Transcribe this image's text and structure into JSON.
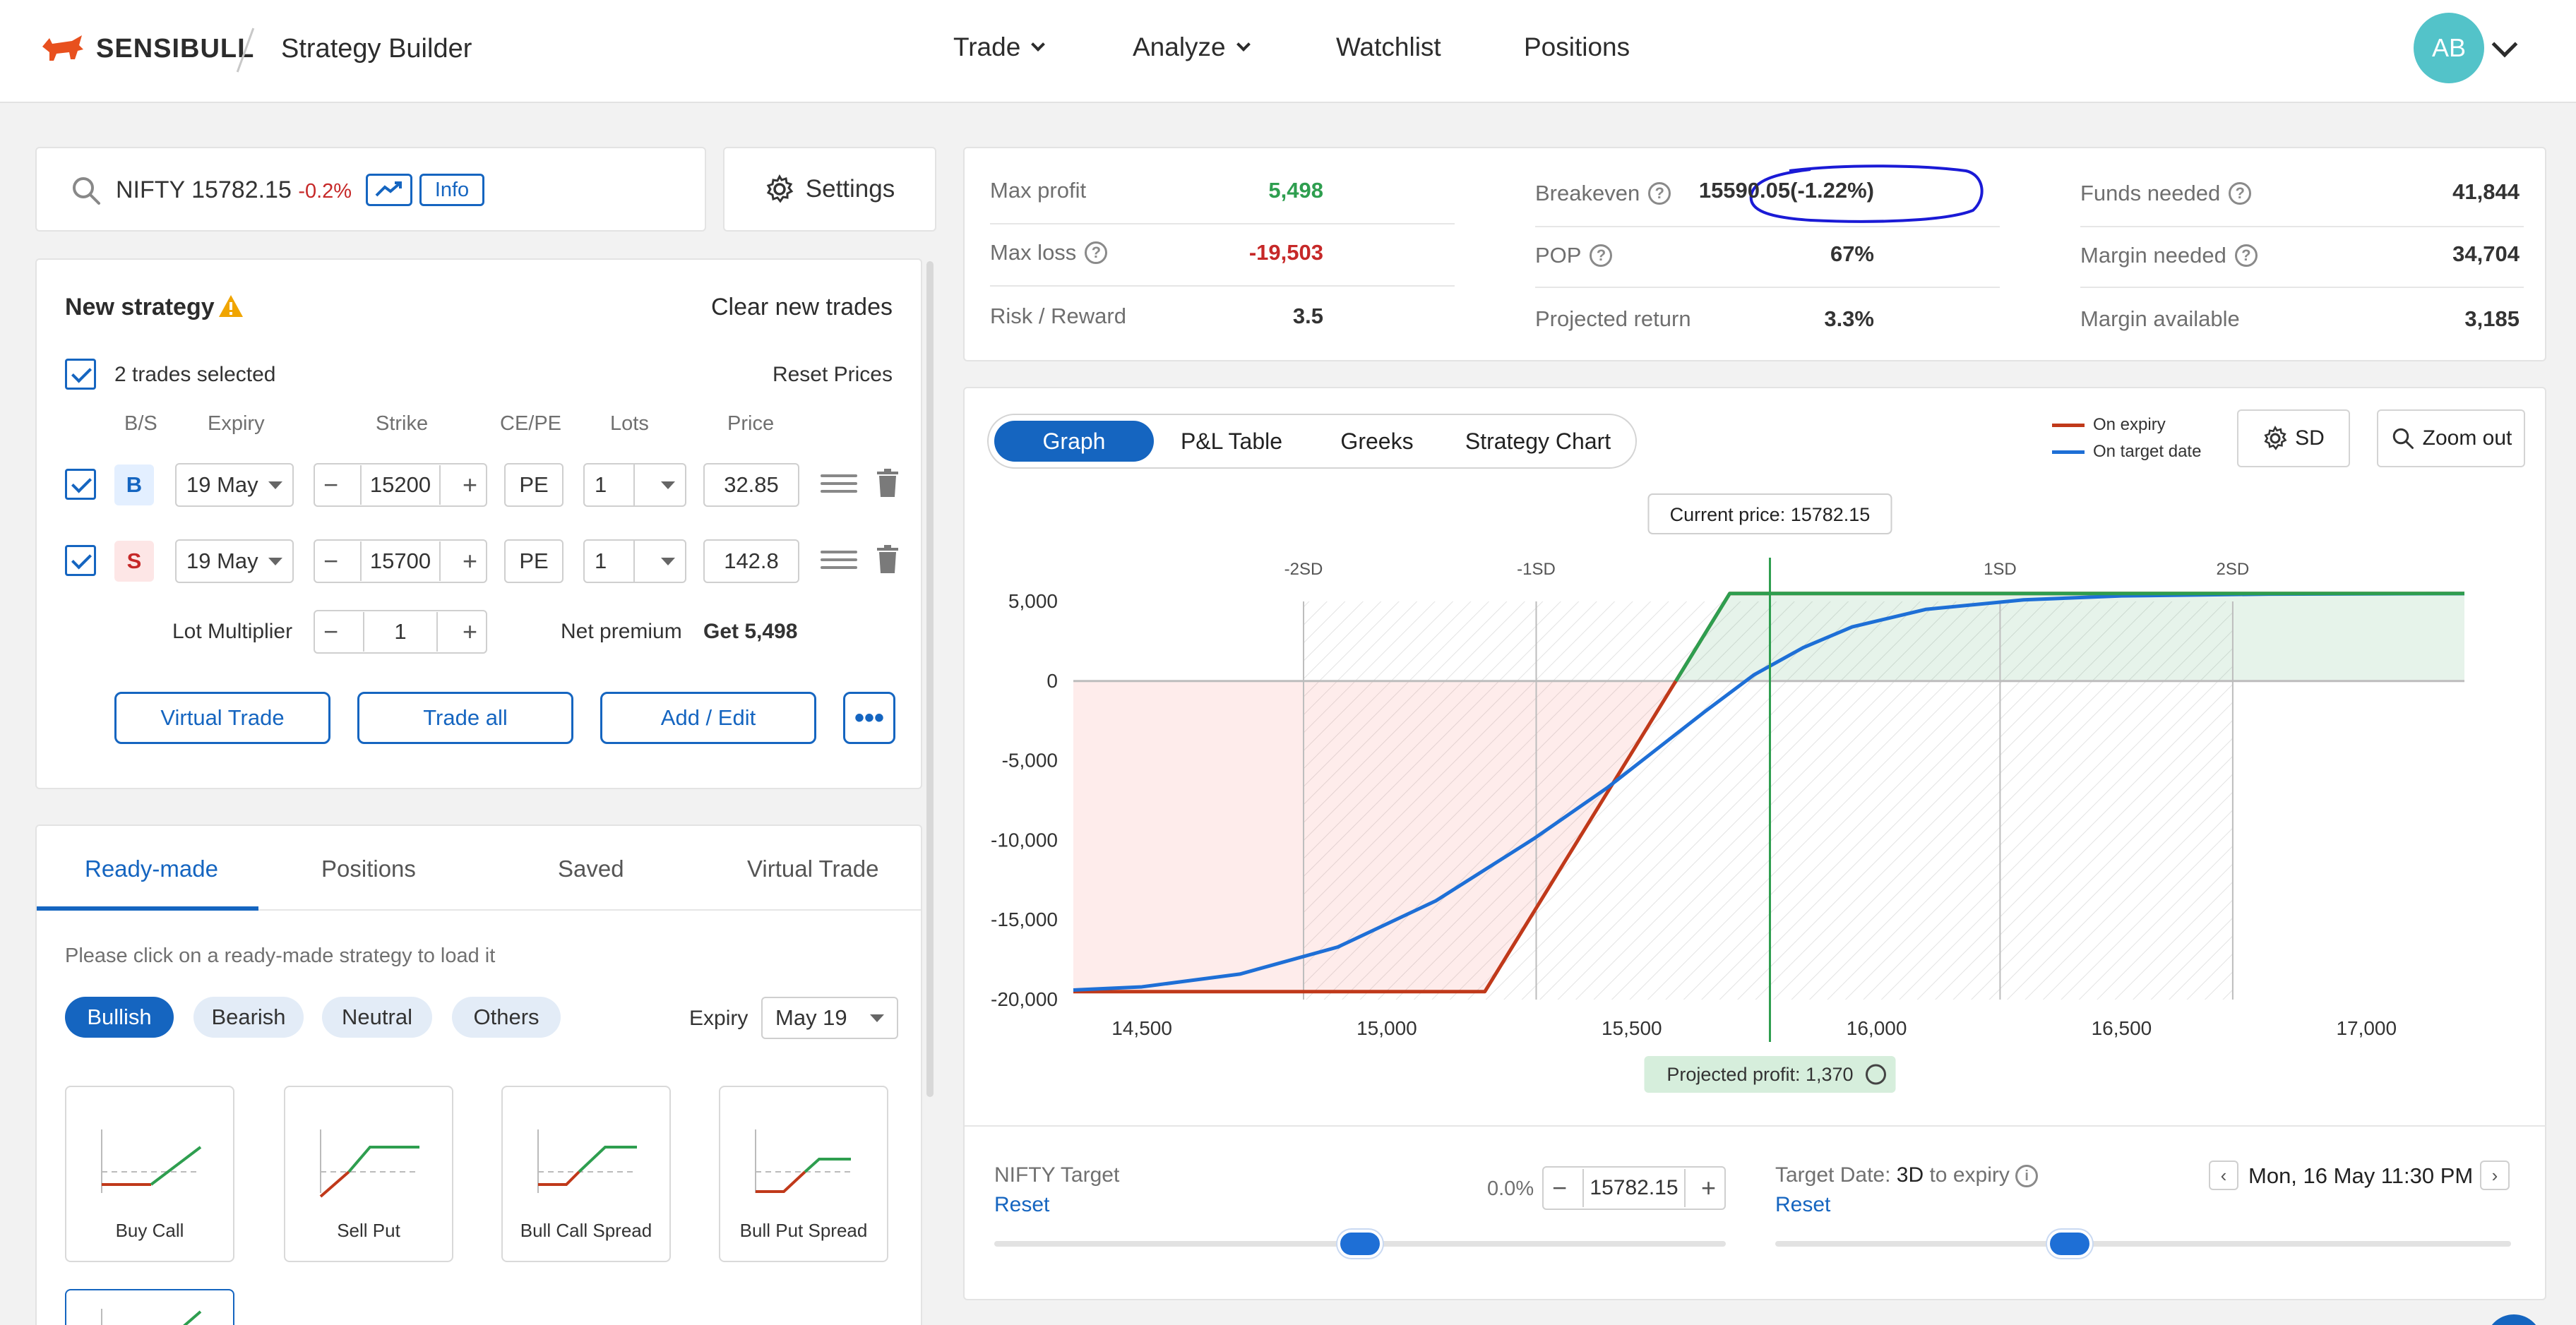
{
  "header": {
    "brand": "SENSIBULL",
    "page_title": "Strategy Builder",
    "nav": [
      {
        "label": "Trade",
        "has_menu": true
      },
      {
        "label": "Analyze",
        "has_menu": true
      },
      {
        "label": "Watchlist",
        "has_menu": false
      },
      {
        "label": "Positions",
        "has_menu": false
      }
    ],
    "avatar_initials": "AB"
  },
  "search": {
    "symbol": "NIFTY",
    "price": "15782.15",
    "change": "-0.2%",
    "info_label": "Info",
    "settings_label": "Settings"
  },
  "strategy": {
    "title": "New strategy",
    "clear_label": "Clear new trades",
    "selected_text": "2 trades selected",
    "reset_prices_label": "Reset Prices",
    "columns": [
      "B/S",
      "Expiry",
      "Strike",
      "CE/PE",
      "Lots",
      "Price"
    ],
    "legs": [
      {
        "side": "B",
        "expiry": "19 May",
        "strike": "15200",
        "type": "PE",
        "lots": "1",
        "price": "32.85"
      },
      {
        "side": "S",
        "expiry": "19 May",
        "strike": "15700",
        "type": "PE",
        "lots": "1",
        "price": "142.8"
      }
    ],
    "lot_multiplier_label": "Lot Multiplier",
    "lot_multiplier": "1",
    "net_premium_label": "Net premium",
    "net_premium_value": "Get 5,498",
    "buttons": {
      "virtual_trade": "Virtual Trade",
      "trade_all": "Trade all",
      "add_edit": "Add / Edit"
    }
  },
  "lower_tabs": [
    "Ready-made",
    "Positions",
    "Saved",
    "Virtual Trade"
  ],
  "readymade": {
    "hint": "Please click on a ready-made strategy to load it",
    "filters": [
      "Bullish",
      "Bearish",
      "Neutral",
      "Others"
    ],
    "expiry_label": "Expiry",
    "expiry_value": "May 19",
    "cards": [
      "Buy Call",
      "Sell Put",
      "Bull Call Spread",
      "Bull Put Spread"
    ]
  },
  "metrics": {
    "col1": [
      {
        "label": "Max profit",
        "value": "5,498",
        "color": "#2e9e4f",
        "help": false
      },
      {
        "label": "Max loss",
        "value": "-19,503",
        "color": "#c62828",
        "help": true
      },
      {
        "label": "Risk / Reward",
        "value": "3.5",
        "color": "#333333",
        "help": false
      }
    ],
    "col2": [
      {
        "label": "Breakeven",
        "value": "15590.05(-1.22%)",
        "color": "#333333",
        "help": true
      },
      {
        "label": "POP",
        "value": "67%",
        "color": "#333333",
        "help": true
      },
      {
        "label": "Projected return",
        "value": "3.3%",
        "color": "#333333",
        "help": false
      }
    ],
    "col3": [
      {
        "label": "Funds needed",
        "value": "41,844",
        "color": "#333333",
        "help": true
      },
      {
        "label": "Margin needed",
        "value": "34,704",
        "color": "#333333",
        "help": true
      },
      {
        "label": "Margin available",
        "value": "3,185",
        "color": "#333333",
        "help": false
      }
    ]
  },
  "graph_tabs": [
    "Graph",
    "P&L Table",
    "Greeks",
    "Strategy Chart"
  ],
  "graph_legend": {
    "expiry": "On expiry",
    "target": "On target date"
  },
  "graph_buttons": {
    "sd": "SD",
    "zoom": "Zoom out"
  },
  "chart_data": {
    "type": "line",
    "x_ticks": [
      "14,500",
      "15,000",
      "15,500",
      "16,000",
      "16,500",
      "17,000"
    ],
    "y_ticks": [
      "5,000",
      "0",
      "-5,000",
      "-10,000",
      "-15,000",
      "-20,000"
    ],
    "xlim": [
      14360,
      17200
    ],
    "ylim": [
      -20000,
      5000
    ],
    "sd_labels": [
      "-2SD",
      "-1SD",
      "1SD",
      "2SD"
    ],
    "sd_values": [
      14830,
      15305,
      16252,
      16727
    ],
    "current_price": 15782.15,
    "current_price_label": "Current price: 15782.15",
    "projected_profit_label": "Projected profit: 1,370",
    "series": [
      {
        "name": "On expiry",
        "color": "#c0391a",
        "x": [
          14360,
          15200,
          15700,
          17200
        ],
        "y": [
          -19503,
          -19503,
          5498,
          5498
        ]
      },
      {
        "name": "On target date",
        "color": "#1e6fd6",
        "x": [
          14360,
          14500,
          14700,
          14900,
          15100,
          15300,
          15450,
          15550,
          15650,
          15750,
          15850,
          15950,
          16100,
          16300,
          16500,
          16800,
          17200
        ],
        "y": [
          -19400,
          -19200,
          -18400,
          -16700,
          -13800,
          -9900,
          -6700,
          -4300,
          -1900,
          400,
          2100,
          3400,
          4500,
          5100,
          5350,
          5460,
          5495
        ]
      }
    ]
  },
  "target": {
    "label": "NIFTY Target",
    "reset": "Reset",
    "pct": "0.0%",
    "value": "15782.15",
    "slider": 0.5,
    "date_label": "Target Date:",
    "date_days": "3D",
    "date_suffix": "to expiry",
    "date_value": "Mon, 16 May 11:30 PM",
    "date_slider": 0.4
  },
  "colors": {
    "accent": "#1565c0",
    "profit": "#2e9e4f",
    "loss": "#c62828",
    "avatar": "#53c3c9"
  }
}
